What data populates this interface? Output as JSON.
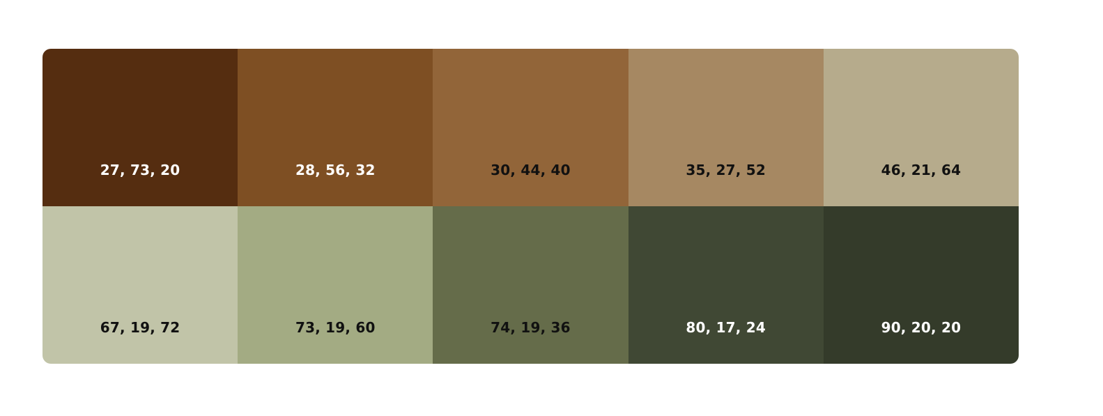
{
  "palette": {
    "swatches": [
      {
        "label": "27, 73, 20",
        "color": "#552d10",
        "text_color": "#ffffff"
      },
      {
        "label": "28, 56, 32",
        "color": "#7e4f23",
        "text_color": "#ffffff"
      },
      {
        "label": "30, 44, 40",
        "color": "#926539",
        "text_color": "#111111"
      },
      {
        "label": "35, 27, 52",
        "color": "#a68862",
        "text_color": "#111111"
      },
      {
        "label": "46, 21, 64",
        "color": "#b6ab8c",
        "text_color": "#111111"
      },
      {
        "label": "67, 19, 72",
        "color": "#c1c4a8",
        "text_color": "#111111"
      },
      {
        "label": "73, 19, 60",
        "color": "#a3ab83",
        "text_color": "#111111"
      },
      {
        "label": "74, 19, 36",
        "color": "#656c4a",
        "text_color": "#111111"
      },
      {
        "label": "80, 17, 24",
        "color": "#404834",
        "text_color": "#ffffff"
      },
      {
        "label": "90, 20, 20",
        "color": "#343b2a",
        "text_color": "#ffffff"
      }
    ]
  }
}
